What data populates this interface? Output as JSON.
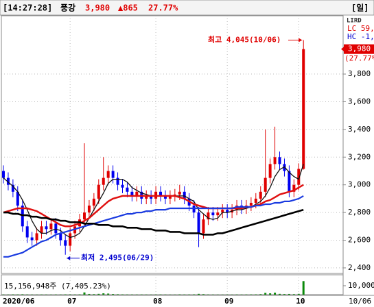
{
  "header": {
    "time": "[14:27:28]",
    "name": "풍강",
    "price": "3,980",
    "change": "▲865",
    "rate": "27.77%",
    "period": "[일]",
    "toolbar": "LIRD"
  },
  "chart_data": {
    "type": "candlestick",
    "categories": [
      "2020/06",
      null,
      null,
      null,
      null,
      null,
      null,
      null,
      null,
      null,
      null,
      null,
      null,
      null,
      "07",
      null,
      null,
      null,
      null,
      null,
      null,
      null,
      null,
      null,
      null,
      null,
      null,
      null,
      null,
      null,
      null,
      null,
      "08",
      null,
      null,
      null,
      null,
      null,
      null,
      null,
      null,
      null,
      null,
      null,
      null,
      null,
      null,
      "09",
      null,
      null,
      null,
      null,
      null,
      null,
      null,
      null,
      null,
      null,
      null,
      null,
      null,
      null,
      "10",
      null
    ],
    "open": [
      3100,
      3050,
      3000,
      2950,
      2850,
      2700,
      2620,
      2600,
      2650,
      2700,
      2680,
      2720,
      2650,
      2600,
      2560,
      2650,
      2700,
      2750,
      2800,
      2850,
      2900,
      3000,
      3050,
      3100,
      3050,
      3000,
      2980,
      2950,
      2920,
      2950,
      2900,
      2920,
      2900,
      2950,
      2920,
      2900,
      2920,
      2930,
      2950,
      2900,
      2850,
      2800,
      2650,
      2750,
      2800,
      2780,
      2800,
      2820,
      2800,
      2820,
      2850,
      2830,
      2850,
      2870,
      2900,
      2950,
      3050,
      3150,
      3200,
      3150,
      3100,
      2950,
      3000,
      3115
    ],
    "high": [
      3140,
      3090,
      3040,
      2990,
      2890,
      2740,
      2660,
      2690,
      2740,
      2740,
      2760,
      2760,
      2690,
      2640,
      2690,
      2740,
      2790,
      3300,
      2890,
      2940,
      3040,
      3200,
      3140,
      3140,
      3090,
      3040,
      3020,
      2990,
      2990,
      2990,
      2960,
      2960,
      2990,
      2990,
      2960,
      2960,
      2970,
      3000,
      2990,
      2940,
      2890,
      2840,
      2790,
      2840,
      2840,
      2840,
      2860,
      2860,
      2860,
      2890,
      2890,
      2890,
      2910,
      2940,
      2990,
      3400,
      3190,
      3420,
      3240,
      3190,
      3140,
      3040,
      3155,
      4045
    ],
    "low": [
      3010,
      2960,
      2910,
      2810,
      2660,
      2580,
      2560,
      2560,
      2610,
      2640,
      2640,
      2610,
      2560,
      2495,
      2520,
      2610,
      2660,
      2710,
      2760,
      2810,
      2860,
      2960,
      3010,
      3010,
      2960,
      2940,
      2910,
      2880,
      2880,
      2860,
      2860,
      2860,
      2860,
      2880,
      2860,
      2860,
      2880,
      2890,
      2860,
      2810,
      2760,
      2550,
      2610,
      2710,
      2740,
      2740,
      2760,
      2760,
      2760,
      2780,
      2790,
      2790,
      2810,
      2830,
      2860,
      2910,
      3010,
      3110,
      3110,
      3060,
      2910,
      2910,
      2960,
      3110
    ],
    "close": [
      3050,
      3000,
      2950,
      2850,
      2700,
      2620,
      2600,
      2650,
      2700,
      2680,
      2720,
      2650,
      2600,
      2560,
      2650,
      2700,
      2750,
      2800,
      2850,
      2900,
      3000,
      3050,
      3100,
      3050,
      3000,
      2980,
      2950,
      2920,
      2950,
      2900,
      2920,
      2900,
      2950,
      2920,
      2900,
      2920,
      2930,
      2950,
      2900,
      2850,
      2800,
      2650,
      2750,
      2800,
      2780,
      2800,
      2820,
      2800,
      2820,
      2850,
      2830,
      2850,
      2870,
      2900,
      2950,
      3050,
      3150,
      3200,
      3150,
      3100,
      2950,
      3000,
      3115,
      3980
    ],
    "up_color": "#e00000",
    "down_color": "#0000f0",
    "series": [
      {
        "color": "#101010",
        "values": [
          3050,
          3020,
          2990,
          2950,
          2890,
          2820,
          2740,
          2680,
          2650,
          2650,
          2670,
          2680,
          2670,
          2640,
          2620,
          2630,
          2650,
          2700,
          2760,
          2820,
          2880,
          2940,
          3010,
          3040,
          3040,
          3040,
          3020,
          2980,
          2960,
          2940,
          2930,
          2920,
          2920,
          2920,
          2920,
          2920,
          2920,
          2920,
          2920,
          2900,
          2880,
          2820,
          2790,
          2760,
          2750,
          2760,
          2800,
          2800,
          2810,
          2820,
          2820,
          2830,
          2840,
          2860,
          2880,
          2920,
          2980,
          3060,
          3110,
          3130,
          3090,
          3060,
          3040,
          3150
        ]
      },
      {
        "color": "#e01010",
        "values": [
          2800,
          2810,
          2820,
          2830,
          2830,
          2830,
          2820,
          2810,
          2790,
          2770,
          2750,
          2730,
          2710,
          2700,
          2700,
          2710,
          2720,
          2740,
          2760,
          2790,
          2820,
          2850,
          2880,
          2900,
          2910,
          2920,
          2920,
          2920,
          2920,
          2920,
          2920,
          2920,
          2920,
          2920,
          2920,
          2920,
          2920,
          2910,
          2900,
          2880,
          2860,
          2850,
          2840,
          2830,
          2830,
          2830,
          2830,
          2830,
          2830,
          2830,
          2830,
          2840,
          2840,
          2850,
          2860,
          2880,
          2890,
          2910,
          2930,
          2940,
          2950,
          2960,
          2980,
          3000
        ]
      },
      {
        "color": "#1a3be0",
        "values": [
          2480,
          2480,
          2490,
          2500,
          2510,
          2530,
          2550,
          2570,
          2590,
          2600,
          2620,
          2640,
          2650,
          2660,
          2670,
          2680,
          2690,
          2700,
          2710,
          2720,
          2730,
          2740,
          2750,
          2760,
          2770,
          2780,
          2790,
          2790,
          2800,
          2800,
          2810,
          2810,
          2820,
          2820,
          2820,
          2830,
          2830,
          2830,
          2830,
          2830,
          2830,
          2830,
          2830,
          2830,
          2830,
          2830,
          2830,
          2830,
          2830,
          2840,
          2840,
          2840,
          2840,
          2850,
          2850,
          2860,
          2860,
          2870,
          2870,
          2880,
          2880,
          2890,
          2900,
          2920
        ]
      },
      {
        "color": "#000000",
        "values": [
          2800,
          2800,
          2790,
          2790,
          2780,
          2780,
          2770,
          2770,
          2760,
          2760,
          2750,
          2750,
          2740,
          2740,
          2730,
          2730,
          2730,
          2720,
          2720,
          2720,
          2710,
          2710,
          2710,
          2700,
          2700,
          2700,
          2690,
          2690,
          2690,
          2680,
          2680,
          2680,
          2670,
          2670,
          2670,
          2660,
          2660,
          2660,
          2650,
          2650,
          2650,
          2650,
          2640,
          2640,
          2640,
          2650,
          2650,
          2660,
          2670,
          2680,
          2690,
          2700,
          2710,
          2720,
          2730,
          2740,
          2750,
          2760,
          2770,
          2780,
          2790,
          2800,
          2810,
          2820
        ]
      }
    ],
    "ylim": [
      2365,
      4216
    ],
    "yticks": [
      {
        "value": 2400,
        "label": "2,400"
      },
      {
        "value": 2600,
        "label": "2,600"
      },
      {
        "value": 2800,
        "label": "2,800"
      },
      {
        "value": 3000,
        "label": "3,000"
      },
      {
        "value": 3200,
        "label": "3,200"
      },
      {
        "value": 3400,
        "label": "3,400"
      },
      {
        "value": 3600,
        "label": "3,600"
      },
      {
        "value": 3800,
        "label": "3,800"
      }
    ],
    "grid": true,
    "high_annotation": "최고 4,045(10/06)",
    "low_annotation": "최저 2,495(06/29)",
    "lc_label": "LC 59,",
    "hc_label": "HC -1,",
    "current_price": {
      "value": 3980,
      "label": "3,980"
    },
    "current_rate": "(27.77%)",
    "volume": {
      "label": "15,156,948주 (7,405.23%)",
      "color": "#0a8a0a",
      "values": [
        300,
        250,
        400,
        350,
        500,
        300,
        250,
        200,
        300,
        250,
        200,
        300,
        250,
        400,
        350,
        300,
        400,
        2500,
        800,
        600,
        900,
        1500,
        1200,
        700,
        500,
        400,
        300,
        300,
        250,
        300,
        250,
        200,
        250,
        300,
        250,
        200,
        200,
        400,
        300,
        300,
        400,
        900,
        600,
        300,
        250,
        200,
        200,
        250,
        200,
        300,
        250,
        300,
        350,
        400,
        600,
        2000,
        1500,
        2200,
        900,
        700,
        800,
        600,
        900,
        15157
      ],
      "ylim": [
        0,
        21500
      ],
      "yticks": [
        {
          "value": 10000,
          "label": "10,000"
        }
      ]
    },
    "last_date": "10/06"
  }
}
